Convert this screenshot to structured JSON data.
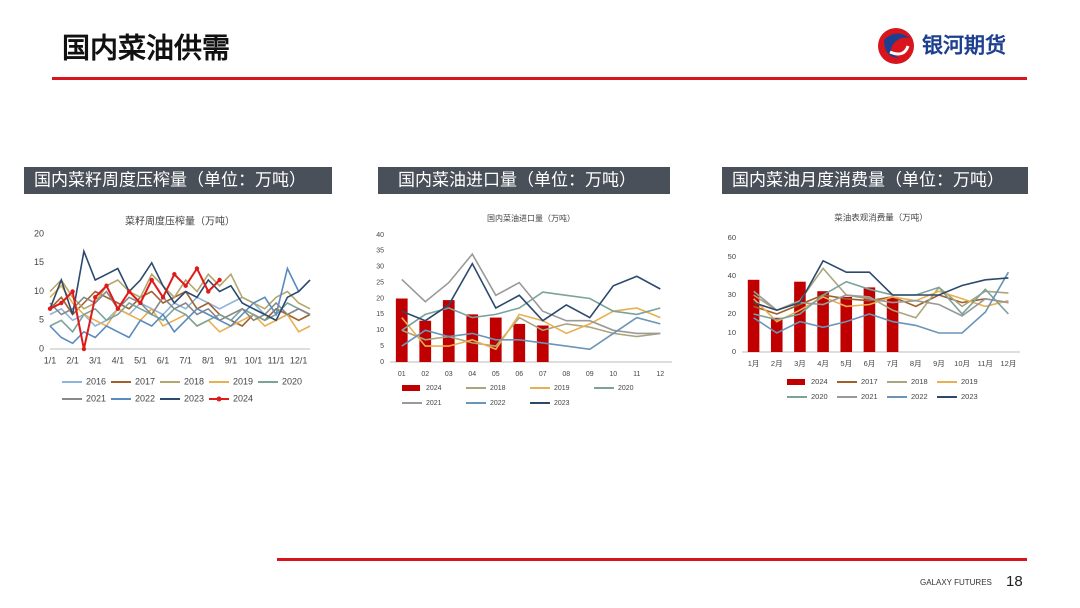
{
  "header": {
    "title": "国内菜油供需",
    "logo": "银河期货"
  },
  "panels": [
    {
      "heading": "国内菜籽周度压榨量（单位：万吨）"
    },
    {
      "heading": "国内菜油进口量（单位：万吨）"
    },
    {
      "heading": "国内菜油月度消费量（单位：万吨）"
    }
  ],
  "footer": {
    "brand": "GALAXY FUTURES",
    "page": "18"
  },
  "chart_data": [
    {
      "type": "line",
      "title": "菜籽周度压榨量（万吨）",
      "categories": [
        "1/1",
        null,
        "2/1",
        null,
        "3/1",
        null,
        "4/1",
        null,
        "5/1",
        null,
        "6/1",
        null,
        "7/1",
        null,
        "8/1",
        null,
        "9/1",
        null,
        "10/1",
        null,
        "11/1",
        null,
        "12/1",
        null
      ],
      "ylim": [
        0,
        20
      ],
      "yticks": [
        0,
        5,
        10,
        15,
        20
      ],
      "grid": false,
      "series": [
        {
          "name": "2016",
          "color": "#8fb4d9",
          "values": [
            6,
            7,
            5,
            6,
            4,
            5,
            7,
            6,
            8,
            7,
            6,
            8,
            7,
            9,
            8,
            7,
            8,
            9,
            8,
            6,
            5,
            6,
            7,
            6
          ]
        },
        {
          "name": "2017",
          "color": "#a0602a",
          "values": [
            7,
            9,
            6,
            8,
            10,
            9,
            8,
            7,
            9,
            10,
            8,
            9,
            10,
            7,
            8,
            6,
            5,
            4,
            6,
            5,
            7,
            6,
            5,
            6
          ]
        },
        {
          "name": "2018",
          "color": "#b5a66b",
          "values": [
            10,
            12,
            9,
            7,
            8,
            11,
            12,
            10,
            9,
            13,
            11,
            9,
            12,
            10,
            13,
            11,
            13,
            9,
            8,
            7,
            9,
            10,
            8,
            7
          ]
        },
        {
          "name": "2019",
          "color": "#e8b050",
          "values": [
            9,
            11,
            8,
            6,
            5,
            4,
            7,
            6,
            5,
            7,
            4,
            5,
            6,
            4,
            5,
            3,
            4,
            5,
            6,
            4,
            5,
            6,
            3,
            4
          ]
        },
        {
          "name": "2020",
          "color": "#7aa39a",
          "values": [
            4,
            5,
            3,
            6,
            7,
            5,
            6,
            8,
            7,
            6,
            5,
            7,
            6,
            4,
            5,
            6,
            5,
            7,
            6,
            5,
            6,
            8,
            7,
            6
          ]
        },
        {
          "name": "2021",
          "color": "#888888",
          "values": [
            8,
            6,
            7,
            9,
            8,
            10,
            7,
            9,
            8,
            6,
            9,
            7,
            8,
            6,
            7,
            5,
            6,
            7,
            5,
            6,
            8,
            6,
            7,
            6
          ]
        },
        {
          "name": "2022",
          "color": "#5a8ac0",
          "values": [
            4,
            2,
            1,
            3,
            2,
            4,
            3,
            2,
            5,
            4,
            6,
            3,
            5,
            7,
            6,
            5,
            4,
            6,
            8,
            9,
            6,
            14,
            10,
            12
          ]
        },
        {
          "name": "2023",
          "color": "#2c4a6e",
          "values": [
            7,
            12,
            6,
            17,
            12,
            13,
            14,
            10,
            12,
            15,
            11,
            8,
            10,
            9,
            12,
            10,
            11,
            8,
            7,
            6,
            5,
            9,
            10,
            12
          ]
        },
        {
          "name": "2024",
          "color": "#e01a1a",
          "markers": true,
          "values": [
            7,
            8,
            10,
            0,
            9,
            11,
            7,
            10,
            8,
            12,
            9,
            13,
            11,
            14,
            10,
            12,
            null,
            null,
            null,
            null,
            null,
            null,
            null,
            null
          ]
        }
      ]
    },
    {
      "type": "combo",
      "title": "国内菜油进口量（万吨）",
      "categories": [
        "01",
        "02",
        "03",
        "04",
        "05",
        "06",
        "07",
        "08",
        "09",
        "10",
        "11",
        "12"
      ],
      "ylim": [
        0,
        40
      ],
      "yticks": [
        0,
        5,
        10,
        15,
        20,
        25,
        30,
        35,
        40
      ],
      "grid": false,
      "series": [
        {
          "name": "2024",
          "color": "#c00000",
          "mark": "bar",
          "values": [
            20,
            13,
            19.5,
            15,
            14,
            12,
            11.5,
            null,
            null,
            null,
            null,
            null
          ]
        },
        {
          "name": "2018",
          "color": "#a9a57c",
          "mark": "line",
          "values": [
            10,
            7,
            8,
            6,
            5,
            14,
            10,
            12,
            11,
            9,
            8,
            9
          ]
        },
        {
          "name": "2019",
          "color": "#e8b050",
          "mark": "line",
          "values": [
            14,
            5,
            5,
            7,
            4,
            15,
            13,
            9,
            12,
            16,
            17,
            14
          ]
        },
        {
          "name": "2020",
          "color": "#7aa39a",
          "mark": "line",
          "values": [
            10,
            15,
            17,
            14,
            15,
            17,
            22,
            21,
            20,
            16,
            15,
            17
          ]
        },
        {
          "name": "2021",
          "color": "#999999",
          "mark": "line",
          "values": [
            26,
            19,
            25,
            34,
            21,
            25,
            16,
            13,
            13,
            10,
            9,
            9
          ]
        },
        {
          "name": "2022",
          "color": "#6a94b8",
          "mark": "line",
          "values": [
            5,
            10,
            8,
            9,
            7,
            7,
            6,
            5,
            4,
            9,
            14,
            12
          ]
        },
        {
          "name": "2023",
          "color": "#2c4a6e",
          "mark": "line",
          "values": [
            16,
            13,
            18,
            31,
            17,
            21,
            13,
            18,
            14,
            24,
            27,
            23
          ]
        }
      ]
    },
    {
      "type": "combo",
      "title": "菜油表观消费量（万吨）",
      "categories": [
        "1月",
        "2月",
        "3月",
        "4月",
        "5月",
        "6月",
        "7月",
        "8月",
        "9月",
        "10月",
        "11月",
        "12月"
      ],
      "ylim": [
        0,
        60
      ],
      "yticks": [
        0,
        10,
        20,
        30,
        40,
        50,
        60
      ],
      "grid": false,
      "series": [
        {
          "name": "2024",
          "color": "#c00000",
          "mark": "bar",
          "values": [
            38,
            18,
            37,
            32,
            29,
            34,
            29,
            null,
            null,
            null,
            null,
            null
          ]
        },
        {
          "name": "2017",
          "color": "#a0602a",
          "mark": "line",
          "values": [
            24,
            20,
            25,
            30,
            28,
            27,
            29,
            24,
            30,
            26,
            28,
            26
          ]
        },
        {
          "name": "2018",
          "color": "#a9a57c",
          "mark": "line",
          "values": [
            30,
            22,
            27,
            44,
            30,
            29,
            22,
            18,
            34,
            24,
            32,
            31
          ]
        },
        {
          "name": "2019",
          "color": "#e8b050",
          "mark": "line",
          "values": [
            28,
            16,
            22,
            29,
            24,
            25,
            29,
            27,
            32,
            28,
            24,
            27
          ]
        },
        {
          "name": "2020",
          "color": "#7aa39a",
          "mark": "line",
          "values": [
            20,
            17,
            20,
            30,
            37,
            33,
            30,
            30,
            34,
            20,
            33,
            20
          ]
        },
        {
          "name": "2021",
          "color": "#999999",
          "mark": "line",
          "values": [
            32,
            22,
            26,
            25,
            30,
            28,
            26,
            27,
            25,
            19,
            28,
            26
          ]
        },
        {
          "name": "2022",
          "color": "#6a94b8",
          "mark": "line",
          "values": [
            18,
            10,
            16,
            13,
            16,
            20,
            16,
            14,
            10,
            10,
            21,
            42
          ]
        },
        {
          "name": "2023",
          "color": "#2c4a6e",
          "mark": "line",
          "values": [
            26,
            22,
            26,
            48,
            42,
            42,
            30,
            30,
            30,
            35,
            38,
            39
          ]
        }
      ]
    }
  ]
}
